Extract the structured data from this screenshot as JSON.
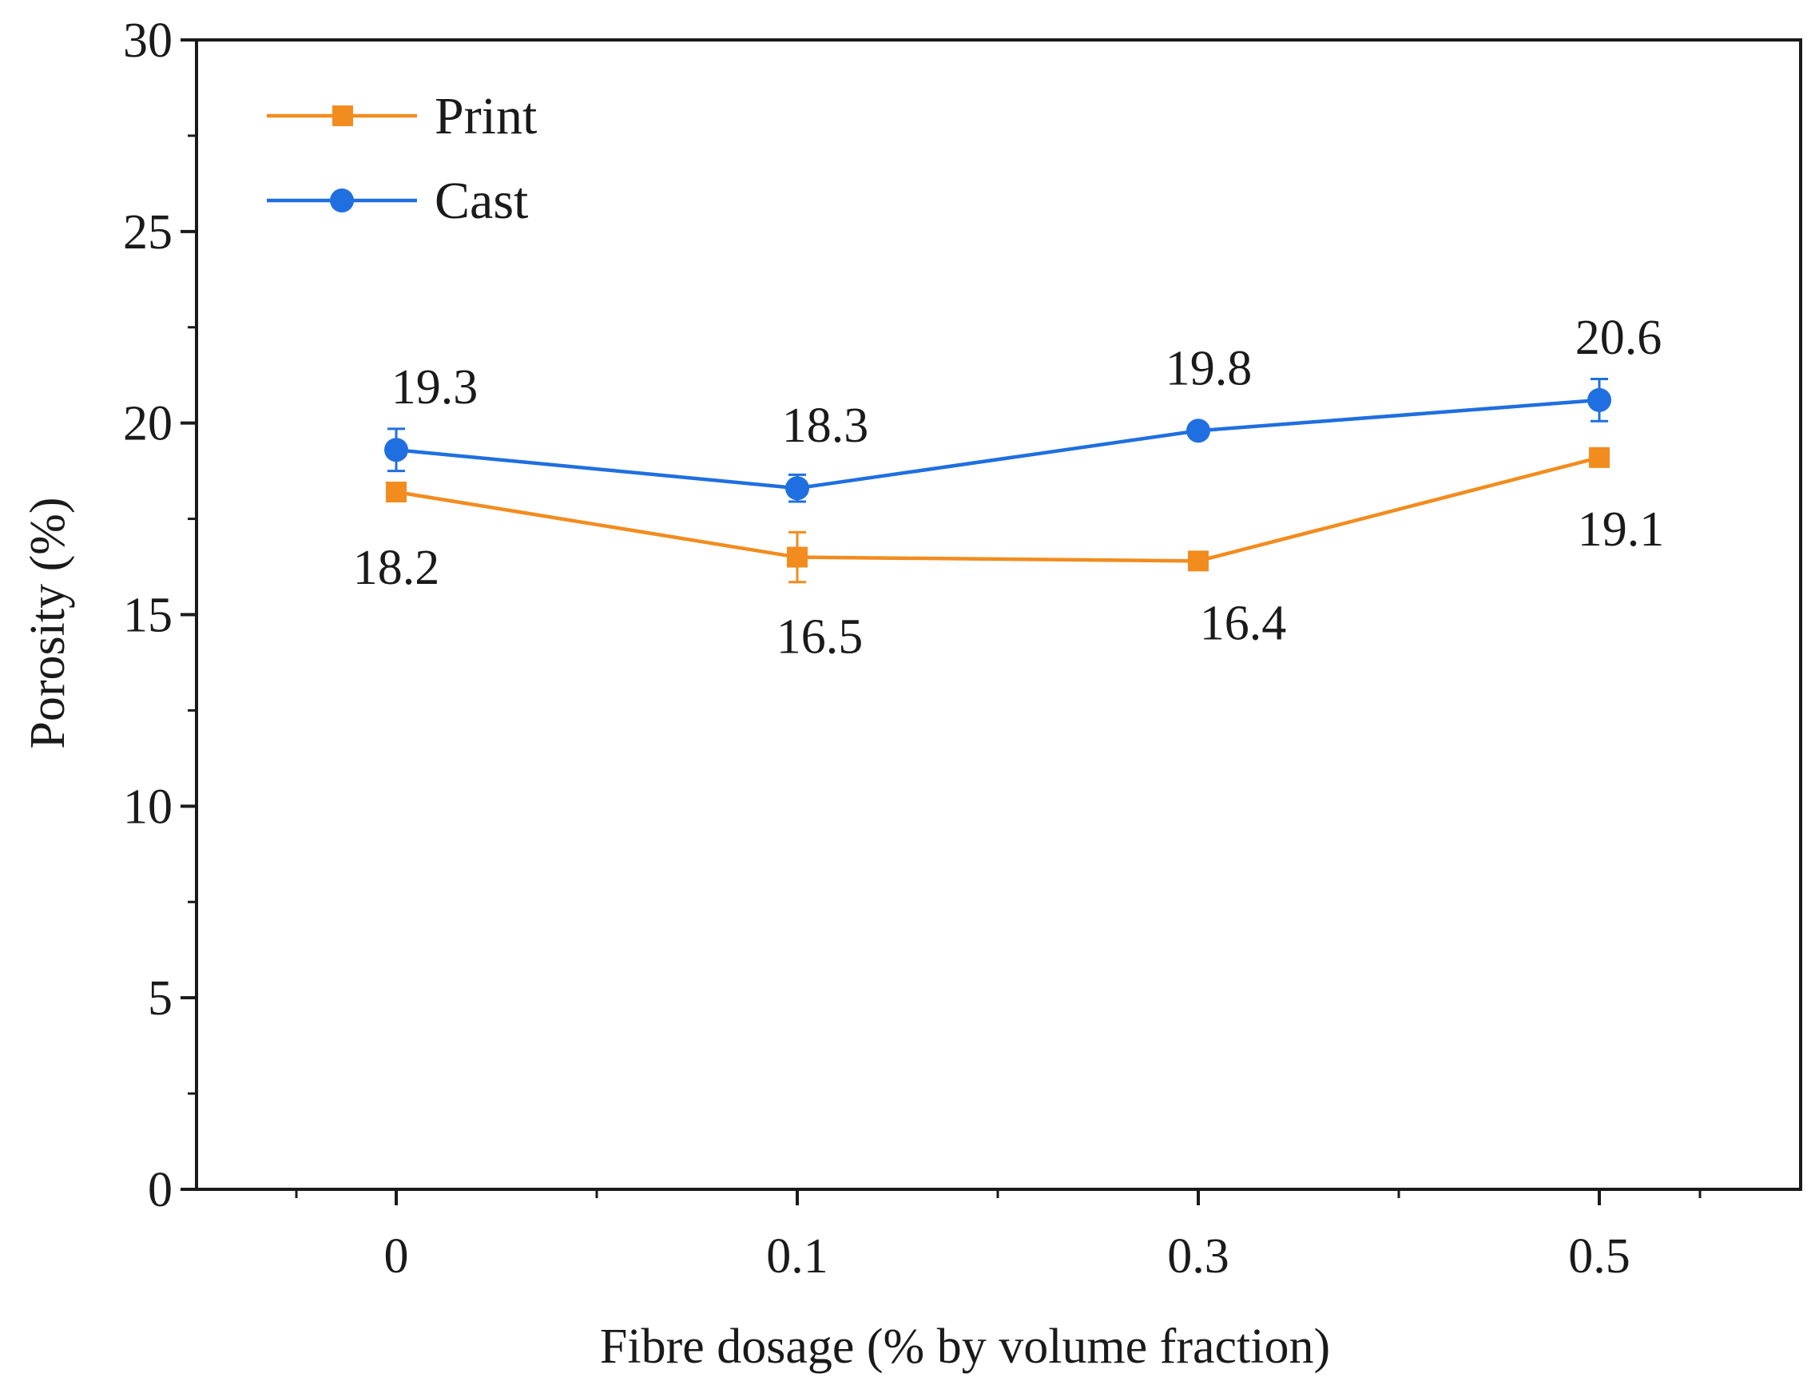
{
  "chart_data": {
    "type": "line",
    "title": "",
    "xlabel": "Fibre dosage (% by volume fraction)",
    "ylabel": "Porosity (%)",
    "categories": [
      "0",
      "0.1",
      "0.3",
      "0.5"
    ],
    "ylim": [
      0,
      30
    ],
    "yticks": [
      "0",
      "5",
      "10",
      "15",
      "20",
      "25",
      "30"
    ],
    "legend_position": "top-left",
    "grid": false,
    "series": [
      {
        "name": "Print",
        "color": "#f28c1e",
        "marker": "square",
        "values": [
          18.2,
          16.5,
          16.4,
          19.1
        ],
        "errors": [
          0.15,
          0.65,
          0.15,
          0.15
        ],
        "labels": [
          "18.2",
          "16.5",
          "16.4",
          "19.1"
        ]
      },
      {
        "name": "Cast",
        "color": "#1f6fe0",
        "marker": "circle",
        "values": [
          19.3,
          18.3,
          19.8,
          20.6
        ],
        "errors": [
          0.55,
          0.35,
          0.15,
          0.55
        ],
        "labels": [
          "19.3",
          "18.3",
          "19.8",
          "20.6"
        ]
      }
    ]
  }
}
